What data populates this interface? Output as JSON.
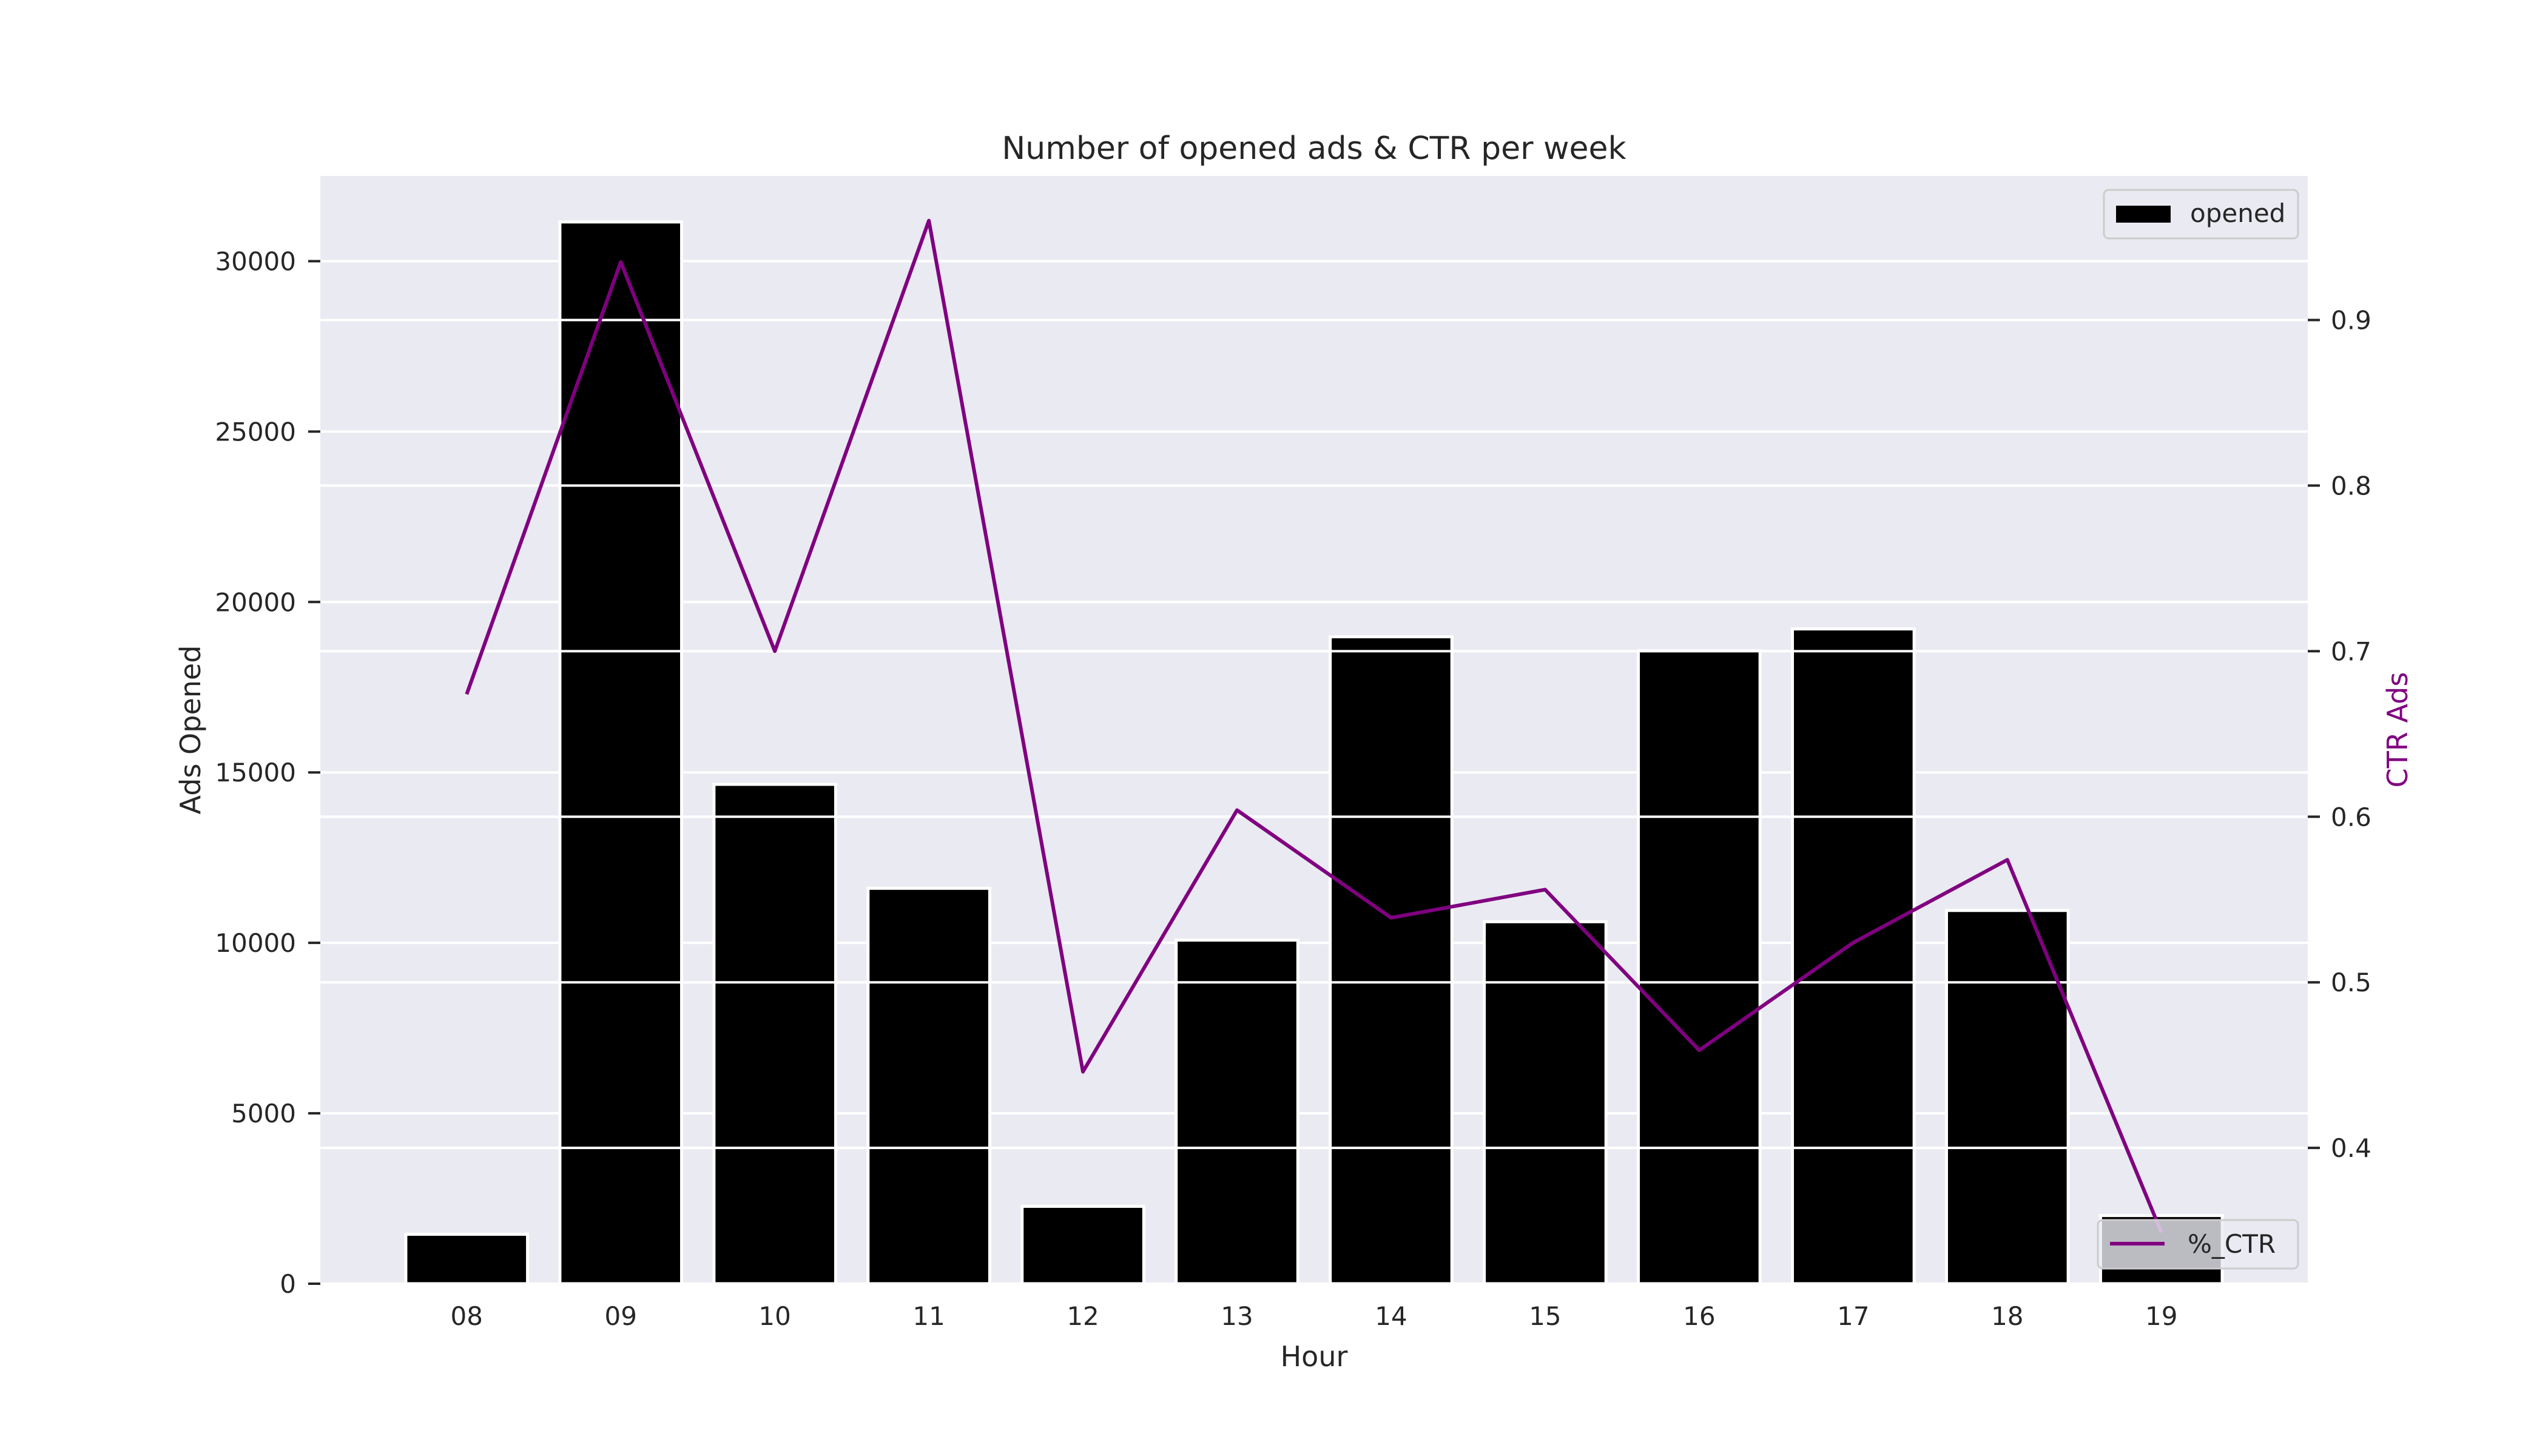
{
  "chart_data": {
    "type": "bar",
    "title": "Number of opened ads & CTR per week",
    "xlabel": "Hour",
    "ylabel": "Ads Opened",
    "y2label": "CTR Ads",
    "categories": [
      "08",
      "09",
      "10",
      "11",
      "12",
      "13",
      "14",
      "15",
      "16",
      "17",
      "18",
      "19"
    ],
    "ylim": [
      0,
      32500
    ],
    "y_ticks": [
      0,
      5000,
      10000,
      15000,
      20000,
      25000,
      30000
    ],
    "y2lim": [
      0.318,
      0.987
    ],
    "y2_ticks": [
      0.4,
      0.5,
      0.6,
      0.7,
      0.8,
      0.9
    ],
    "series": [
      {
        "name": "opened",
        "type": "bar",
        "color": "#000000",
        "values": [
          1450,
          31150,
          14650,
          11600,
          2270,
          10080,
          18980,
          10620,
          18570,
          19210,
          10950,
          2000
        ]
      },
      {
        "name": "%_CTR",
        "type": "line",
        "axis": "secondary",
        "color": "#800080",
        "values": [
          0.674,
          0.935,
          0.7,
          0.96,
          0.446,
          0.604,
          0.539,
          0.556,
          0.459,
          0.524,
          0.574,
          0.349
        ]
      }
    ],
    "grid": true,
    "legend": [
      {
        "label": "opened",
        "placement": "upper-right"
      },
      {
        "label": "%_CTR",
        "placement": "lower-right"
      }
    ],
    "colors": {
      "plot_background": "#eaeaf2",
      "grid": "#ffffff",
      "y2label": "#800080"
    }
  }
}
